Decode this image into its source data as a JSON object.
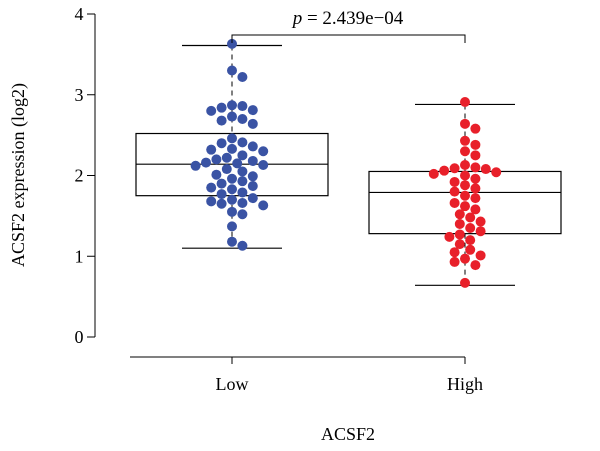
{
  "chart_data": {
    "type": "boxplot-beeswarm",
    "xlabel": "ACSF2",
    "ylabel": "ACSF2 expression (log2)",
    "ylim": [
      0,
      4
    ],
    "yticks": [
      "0",
      "1",
      "2",
      "3",
      "4"
    ],
    "categories": [
      "Low",
      "High"
    ],
    "annotation": {
      "p_label": "p",
      "p_value": " = 2.439e−04"
    },
    "groups": [
      {
        "name": "Low",
        "color": "#3a53a4",
        "box": {
          "whisker_low": 1.1,
          "q1": 1.75,
          "median": 2.14,
          "q3": 2.52,
          "whisker_high": 3.61
        },
        "points": [
          3.63,
          3.3,
          3.22,
          2.87,
          2.86,
          2.84,
          2.81,
          2.8,
          2.73,
          2.7,
          2.68,
          2.64,
          2.46,
          2.41,
          2.4,
          2.36,
          2.33,
          2.32,
          2.3,
          2.25,
          2.22,
          2.2,
          2.18,
          2.16,
          2.15,
          2.13,
          2.12,
          2.08,
          2.05,
          2.01,
          1.99,
          1.96,
          1.93,
          1.9,
          1.87,
          1.85,
          1.83,
          1.79,
          1.77,
          1.72,
          1.7,
          1.68,
          1.66,
          1.65,
          1.63,
          1.55,
          1.52,
          1.37,
          1.18,
          1.13
        ]
      },
      {
        "name": "High",
        "color": "#e8202a",
        "box": {
          "whisker_low": 0.64,
          "q1": 1.28,
          "median": 1.79,
          "q3": 2.05,
          "whisker_high": 2.88
        },
        "points": [
          2.91,
          2.64,
          2.58,
          2.43,
          2.38,
          2.3,
          2.25,
          2.13,
          2.1,
          2.09,
          2.08,
          2.06,
          2.04,
          2.02,
          2.0,
          1.96,
          1.92,
          1.88,
          1.84,
          1.8,
          1.75,
          1.72,
          1.66,
          1.62,
          1.58,
          1.52,
          1.48,
          1.43,
          1.4,
          1.35,
          1.31,
          1.27,
          1.24,
          1.2,
          1.15,
          1.08,
          1.05,
          1.01,
          0.97,
          0.93,
          0.89,
          0.67
        ]
      }
    ]
  }
}
